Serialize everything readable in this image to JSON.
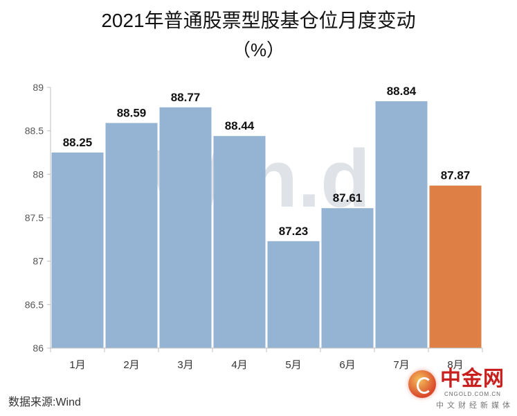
{
  "chart_data": {
    "type": "bar",
    "title": "2021年普通股票型股基仓位月度变动",
    "subtitle": "（%）",
    "categories": [
      "1月",
      "2月",
      "3月",
      "4月",
      "5月",
      "6月",
      "7月",
      "8月"
    ],
    "values": [
      88.25,
      88.59,
      88.77,
      88.44,
      87.23,
      87.61,
      88.84,
      87.87
    ],
    "value_labels": [
      "88.25",
      "88.59",
      "88.77",
      "88.44",
      "87.23",
      "87.61",
      "88.84",
      "87.87"
    ],
    "ylim": [
      86,
      89
    ],
    "y_ticks": [
      86,
      86.5,
      87,
      87.5,
      88,
      88.5,
      89
    ],
    "y_tick_labels": [
      "86",
      "86.5",
      "87",
      "87.5",
      "88",
      "88.5",
      "89"
    ],
    "xlabel": "",
    "ylabel": "",
    "grid": false,
    "legend": "none",
    "colors": {
      "bar": "#95b3d3",
      "highlight_bar": "#de8046",
      "highlight_index": 7,
      "axis": "#bfbfbf",
      "watermark": "#dfe3e8"
    }
  },
  "watermark_text": "Win.d",
  "source_note": "数据来源:Wind",
  "logo": {
    "name": "中金网",
    "url": "CNGOLD.COM.CN",
    "tagline": "中文财经新媒体"
  }
}
